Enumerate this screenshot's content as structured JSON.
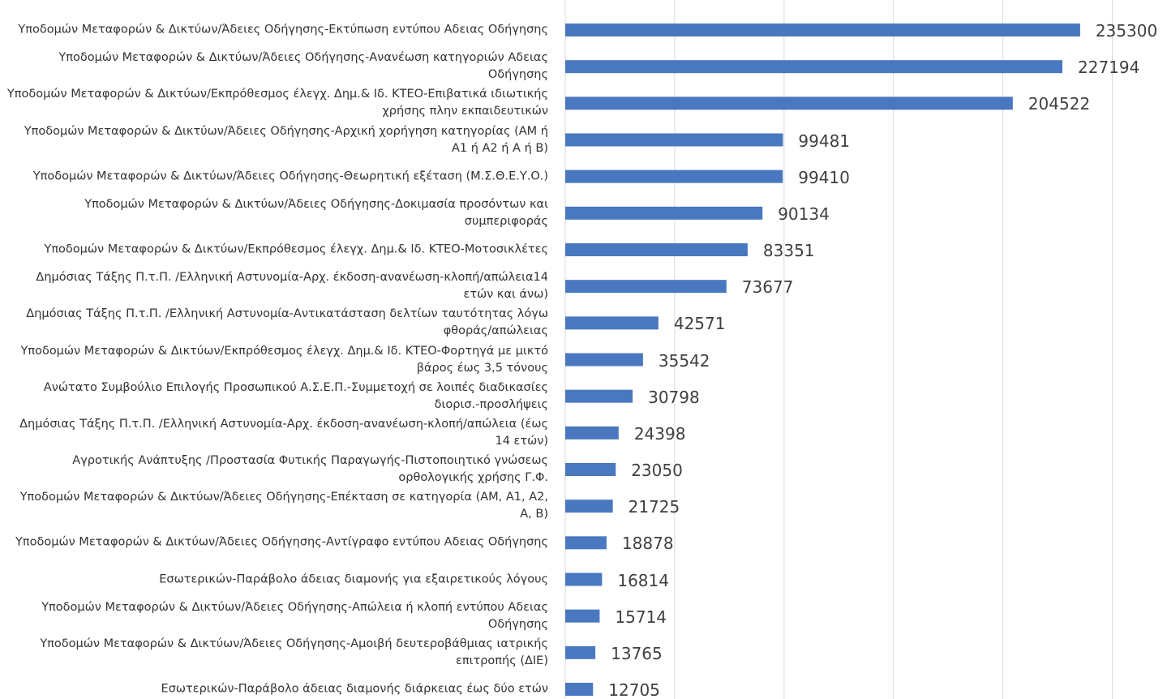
{
  "chart_data": {
    "type": "barh",
    "categories": [
      "Υποδομών Μεταφορών & Δικτύων/Άδειες Οδήγησης-Εκτύπωση εντύπου Αδειας Οδήγησης",
      "Υποδομών Μεταφορών & Δικτύων/Άδειες Οδήγησης-Ανανέωση κατηγοριών Αδειας Οδήγησης",
      "Υποδομών Μεταφορών & Δικτύων/Εκπρόθεσμος έλεγχ. Δημ.& Ιδ. ΚΤΕΟ-Επιβατικά ιδιωτικής χρήσης πλην εκπαιδευτικών",
      "Υποδομών Μεταφορών & Δικτύων/Άδειες Οδήγησης-Αρχική χορήγηση κατηγορίας (ΑΜ ή Α1 ή Α2 ή Α ή Β)",
      "Υποδομών Μεταφορών & Δικτύων/Άδειες Οδήγησης-Θεωρητική εξέταση (Μ.Σ.Θ.Ε.Υ.Ο.)",
      "Υποδομών Μεταφορών & Δικτύων/Άδειες Οδήγησης-Δοκιμασία προσόντων και συμπεριφοράς",
      "Υποδομών Μεταφορών & Δικτύων/Εκπρόθεσμος έλεγχ. Δημ.& Ιδ. ΚΤΕΟ-Μοτοσικλέτες",
      "Δημόσιας Τάξης Π.τ.Π. /Ελληνική Αστυνομία-Αρχ. έκδοση-ανανέωση-κλοπή/απώλεια14 ετών και άνω)",
      "Δημόσιας Τάξης Π.τ.Π. /Ελληνική Αστυνομία-Αντικατάσταση δελτίων ταυτότητας λόγω φθοράς/απώλειας",
      "Υποδομών Μεταφορών & Δικτύων/Εκπρόθεσμος έλεγχ. Δημ.& Ιδ. ΚΤΕΟ-Φορτηγά με μικτό βάρος έως 3,5 τόνους",
      "Ανώτατο Συμβούλιο Επιλογής Προσωπικού  Α.Σ.Ε.Π.-Συμμετοχή σε λοιπές διαδικασίες διορισ.-προσλήψεις",
      "Δημόσιας Τάξης Π.τ.Π. /Ελληνική Αστυνομία-Αρχ. έκδοση-ανανέωση-κλοπή/απώλεια (έως 14 ετών)",
      "Αγροτικής Ανάπτυξης /Προστασία Φυτικής Παραγωγής-Πιστοποιητικό γνώσεως ορθολογικής χρήσης Γ.Φ.",
      "Υποδομών Μεταφορών & Δικτύων/Άδειες Οδήγησης-Επέκταση σε κατηγορία (ΑΜ, Α1, Α2, Α, Β)",
      "Υποδομών Μεταφορών & Δικτύων/Άδειες Οδήγησης-Αντίγραφο εντύπου Αδειας Οδήγησης",
      "Εσωτερικών-Παράβολο άδειας διαμονής για εξαιρετικούς λόγους",
      "Υποδομών Μεταφορών & Δικτύων/Άδειες Οδήγησης-Απώλεια ή κλοπή εντύπου Αδειας Οδήγησης",
      "Υποδομών Μεταφορών & Δικτύων/Άδειες Οδήγησης-Αμοιβή δευτεροβάθμιας ιατρικής επιτροπής (ΔΙΕ)",
      "Εσωτερικών-Παράβολο άδειας διαμονής διάρκειας έως δύο ετών"
    ],
    "values": [
      235300,
      227194,
      204522,
      99481,
      99410,
      90134,
      83351,
      73677,
      42571,
      35542,
      30798,
      24398,
      23050,
      21725,
      18878,
      16814,
      15714,
      13765,
      12705
    ],
    "color": "#4a78c0",
    "xlim": [
      0,
      275000
    ],
    "xticks": [
      0,
      50000,
      100000,
      150000,
      200000,
      250000
    ],
    "grid": true
  }
}
